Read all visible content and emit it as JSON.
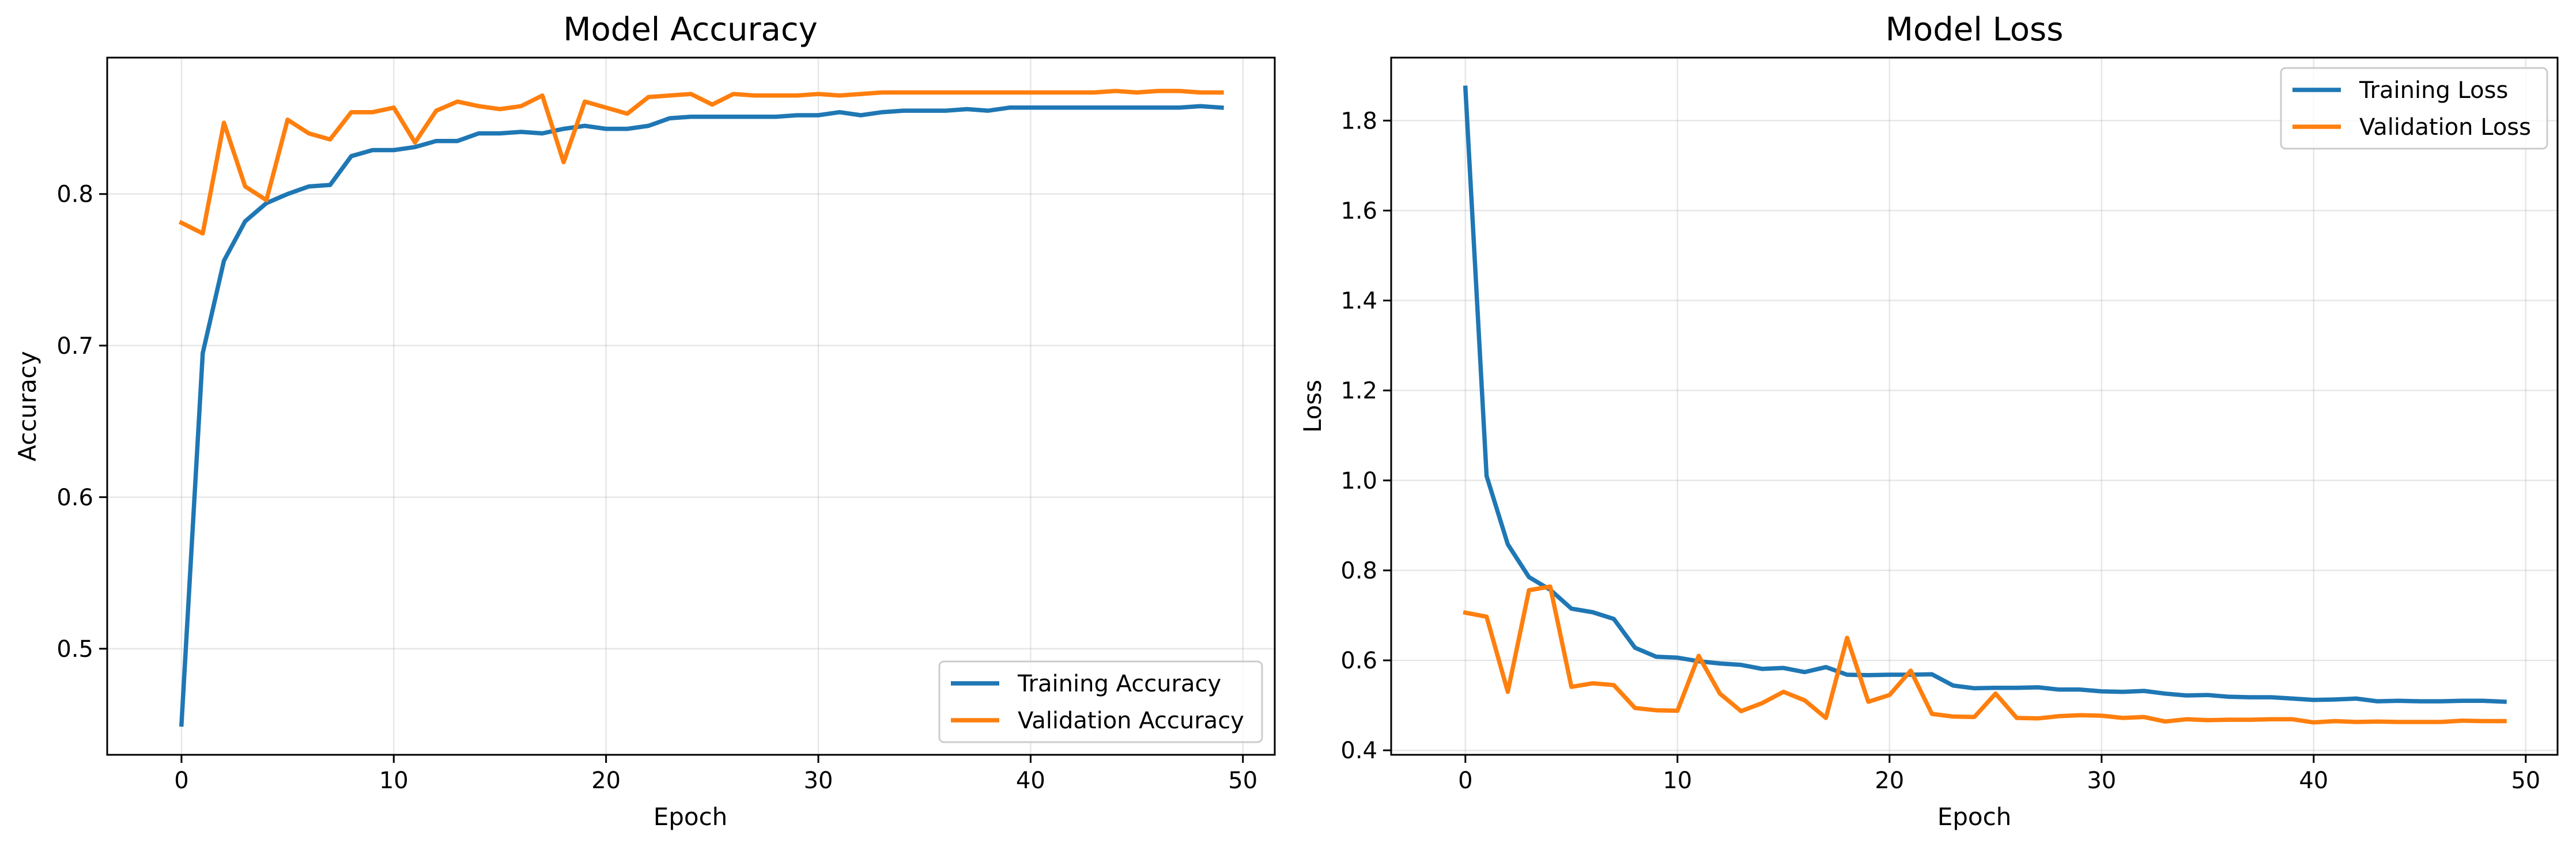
{
  "chart_data": [
    {
      "type": "line",
      "title": "Model Accuracy",
      "xlabel": "Epoch",
      "ylabel": "Accuracy",
      "xlim": [
        -3.5,
        51.5
      ],
      "ylim": [
        0.43,
        0.89
      ],
      "xticks": [
        0,
        10,
        20,
        30,
        40,
        50
      ],
      "yticks": [
        0.5,
        0.6,
        0.7,
        0.8
      ],
      "xtick_labels": [
        "0",
        "10",
        "20",
        "30",
        "40",
        "50"
      ],
      "ytick_labels": [
        "0.5",
        "0.6",
        "0.7",
        "0.8"
      ],
      "grid": true,
      "legend_position": "lower-right",
      "x": [
        0,
        1,
        2,
        3,
        4,
        5,
        6,
        7,
        8,
        9,
        10,
        11,
        12,
        13,
        14,
        15,
        16,
        17,
        18,
        19,
        20,
        21,
        22,
        23,
        24,
        25,
        26,
        27,
        28,
        29,
        30,
        31,
        32,
        33,
        34,
        35,
        36,
        37,
        38,
        39,
        40,
        41,
        42,
        43,
        44,
        45,
        46,
        47,
        48,
        49
      ],
      "series": [
        {
          "name": "Training Accuracy",
          "color": "#1f77b4",
          "values": [
            0.45,
            0.695,
            0.756,
            0.782,
            0.794,
            0.8,
            0.805,
            0.806,
            0.825,
            0.829,
            0.829,
            0.831,
            0.835,
            0.835,
            0.84,
            0.84,
            0.841,
            0.84,
            0.843,
            0.845,
            0.843,
            0.843,
            0.845,
            0.85,
            0.851,
            0.851,
            0.851,
            0.851,
            0.851,
            0.852,
            0.852,
            0.854,
            0.852,
            0.854,
            0.855,
            0.855,
            0.855,
            0.856,
            0.855,
            0.857,
            0.857,
            0.857,
            0.857,
            0.857,
            0.857,
            0.857,
            0.857,
            0.857,
            0.858,
            0.857
          ]
        },
        {
          "name": "Validation Accuracy",
          "color": "#ff7f0e",
          "values": [
            0.781,
            0.774,
            0.847,
            0.805,
            0.796,
            0.849,
            0.84,
            0.836,
            0.854,
            0.854,
            0.857,
            0.834,
            0.855,
            0.861,
            0.858,
            0.856,
            0.858,
            0.865,
            0.821,
            0.861,
            0.857,
            0.853,
            0.864,
            0.865,
            0.866,
            0.859,
            0.866,
            0.865,
            0.865,
            0.865,
            0.866,
            0.865,
            0.866,
            0.867,
            0.867,
            0.867,
            0.867,
            0.867,
            0.867,
            0.867,
            0.867,
            0.867,
            0.867,
            0.867,
            0.868,
            0.867,
            0.868,
            0.868,
            0.867,
            0.867
          ]
        }
      ]
    },
    {
      "type": "line",
      "title": "Model Loss",
      "xlabel": "Epoch",
      "ylabel": "Loss",
      "xlim": [
        -3.5,
        51.5
      ],
      "ylim": [
        0.39,
        1.94
      ],
      "xticks": [
        0,
        10,
        20,
        30,
        40,
        50
      ],
      "yticks": [
        0.4,
        0.6,
        0.8,
        1.0,
        1.2,
        1.4,
        1.6,
        1.8
      ],
      "xtick_labels": [
        "0",
        "10",
        "20",
        "30",
        "40",
        "50"
      ],
      "ytick_labels": [
        "0.4",
        "0.6",
        "0.8",
        "1.0",
        "1.2",
        "1.4",
        "1.6",
        "1.8"
      ],
      "grid": true,
      "legend_position": "upper-right",
      "x": [
        0,
        1,
        2,
        3,
        4,
        5,
        6,
        7,
        8,
        9,
        10,
        11,
        12,
        13,
        14,
        15,
        16,
        17,
        18,
        19,
        20,
        21,
        22,
        23,
        24,
        25,
        26,
        27,
        28,
        29,
        30,
        31,
        32,
        33,
        34,
        35,
        36,
        37,
        38,
        39,
        40,
        41,
        42,
        43,
        44,
        45,
        46,
        47,
        48,
        49
      ],
      "series": [
        {
          "name": "Training Loss",
          "color": "#1f77b4",
          "values": [
            1.873,
            1.01,
            0.858,
            0.785,
            0.757,
            0.715,
            0.707,
            0.692,
            0.628,
            0.608,
            0.606,
            0.598,
            0.593,
            0.59,
            0.581,
            0.583,
            0.574,
            0.585,
            0.568,
            0.567,
            0.568,
            0.568,
            0.569,
            0.544,
            0.538,
            0.539,
            0.539,
            0.54,
            0.535,
            0.535,
            0.531,
            0.53,
            0.532,
            0.526,
            0.522,
            0.523,
            0.519,
            0.518,
            0.518,
            0.515,
            0.512,
            0.513,
            0.515,
            0.509,
            0.51,
            0.509,
            0.509,
            0.51,
            0.51,
            0.508
          ]
        },
        {
          "name": "Validation Loss",
          "color": "#ff7f0e",
          "values": [
            0.706,
            0.697,
            0.53,
            0.756,
            0.764,
            0.541,
            0.549,
            0.545,
            0.494,
            0.489,
            0.488,
            0.61,
            0.526,
            0.487,
            0.505,
            0.53,
            0.511,
            0.472,
            0.65,
            0.508,
            0.523,
            0.577,
            0.481,
            0.475,
            0.474,
            0.526,
            0.472,
            0.471,
            0.476,
            0.478,
            0.477,
            0.472,
            0.474,
            0.464,
            0.469,
            0.467,
            0.468,
            0.468,
            0.469,
            0.469,
            0.462,
            0.465,
            0.463,
            0.464,
            0.463,
            0.463,
            0.463,
            0.466,
            0.465,
            0.465
          ]
        }
      ]
    }
  ]
}
